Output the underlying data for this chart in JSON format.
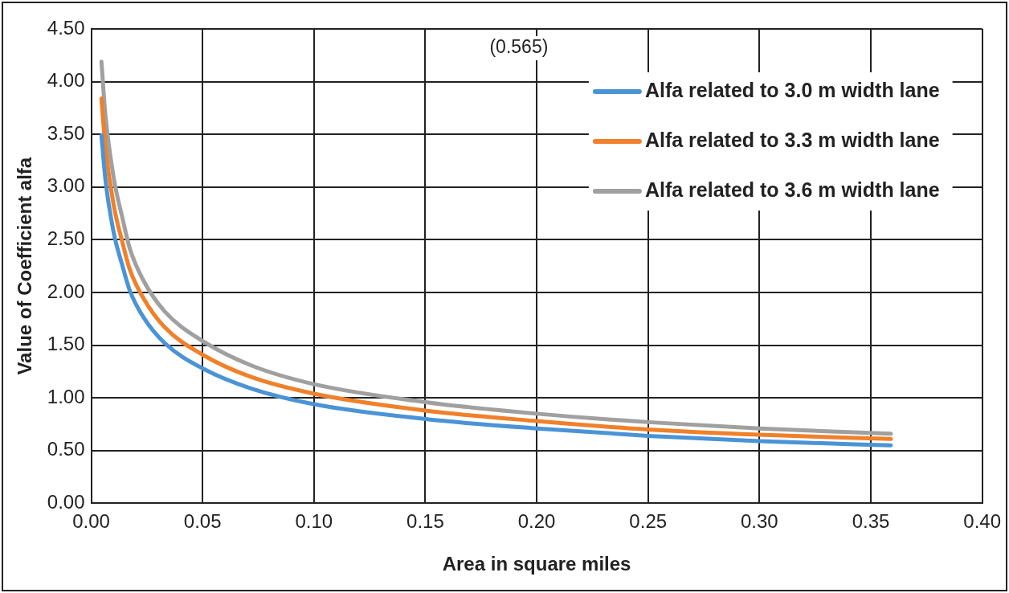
{
  "chart_data": {
    "type": "line",
    "xlabel": "Area in square miles",
    "ylabel": "Value of Coefficient alfa",
    "annotations": [
      "(0.565)"
    ],
    "x": [
      0.0046,
      0.0064,
      0.01,
      0.0142,
      0.0173,
      0.0233,
      0.033,
      0.05,
      0.0716,
      0.1,
      0.15,
      0.2,
      0.25,
      0.3,
      0.359
    ],
    "series": [
      {
        "name": "Alfa related to 3.0 m width lane",
        "color": "#4a94d6",
        "values": [
          3.49,
          3.07,
          2.58,
          2.24,
          2.02,
          1.77,
          1.52,
          1.28,
          1.09,
          0.94,
          0.8,
          0.71,
          0.64,
          0.59,
          0.55
        ]
      },
      {
        "name": "Alfa related to 3.3 m width lane",
        "color": "#f0802a",
        "values": [
          3.84,
          3.38,
          2.84,
          2.46,
          2.22,
          1.95,
          1.67,
          1.41,
          1.2,
          1.04,
          0.88,
          0.78,
          0.7,
          0.65,
          0.61
        ]
      },
      {
        "name": "Alfa related to 3.6 m width lane",
        "color": "#a0a0a0",
        "values": [
          4.19,
          3.68,
          3.1,
          2.69,
          2.42,
          2.12,
          1.82,
          1.54,
          1.31,
          1.13,
          0.96,
          0.85,
          0.77,
          0.71,
          0.66
        ]
      }
    ],
    "xlim": [
      0,
      0.4
    ],
    "xticks": [
      {
        "value": 0,
        "label": "0.00"
      },
      {
        "value": 0.05,
        "label": "0.05"
      },
      {
        "value": 0.1,
        "label": "0.10"
      },
      {
        "value": 0.15,
        "label": "0.15"
      },
      {
        "value": 0.2,
        "label": "0.20"
      },
      {
        "value": 0.25,
        "label": "0.25"
      },
      {
        "value": 0.3,
        "label": "0.30"
      },
      {
        "value": 0.35,
        "label": "0.35"
      },
      {
        "value": 0.4,
        "label": "0.40"
      }
    ],
    "ylim": [
      0,
      4.5
    ],
    "yticks": [
      {
        "value": 0,
        "label": "0.00"
      },
      {
        "value": 0.5,
        "label": "0.50"
      },
      {
        "value": 1,
        "label": "1.00"
      },
      {
        "value": 1.5,
        "label": "1.50"
      },
      {
        "value": 2,
        "label": "2.00"
      },
      {
        "value": 2.5,
        "label": "2.50"
      },
      {
        "value": 3,
        "label": "3.00"
      },
      {
        "value": 3.5,
        "label": "3.50"
      },
      {
        "value": 4,
        "label": "4.00"
      },
      {
        "value": 4.5,
        "label": "4.50"
      }
    ],
    "grid": true,
    "legend": "top right",
    "marker": "none",
    "line_style": "solid"
  }
}
